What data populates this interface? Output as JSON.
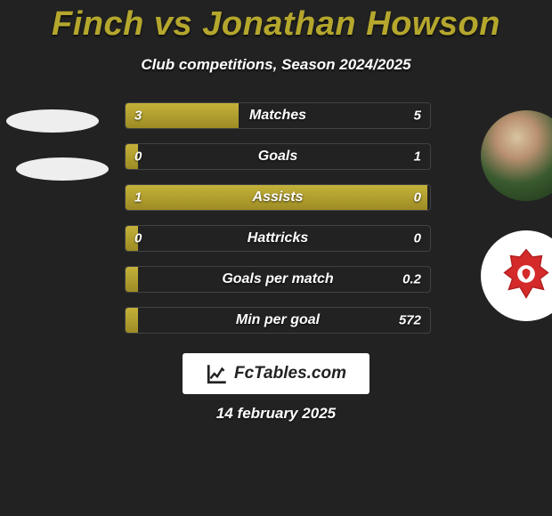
{
  "title": "Finch vs Jonathan Howson",
  "subtitle": "Club competitions, Season 2024/2025",
  "date": "14 february 2025",
  "logo_text": "FcTables.com",
  "accent_color": "#b5a72d",
  "bar_fill_gradient": [
    "#c4b13a",
    "#9d8c24"
  ],
  "background_color": "#222222",
  "bars": [
    {
      "label": "Matches",
      "left": "3",
      "right": "5",
      "fill_pct": 37
    },
    {
      "label": "Goals",
      "left": "0",
      "right": "1",
      "fill_pct": 4
    },
    {
      "label": "Assists",
      "left": "1",
      "right": "0",
      "fill_pct": 99
    },
    {
      "label": "Hattricks",
      "left": "0",
      "right": "0",
      "fill_pct": 4
    },
    {
      "label": "Goals per match",
      "left": "",
      "right": "0.2",
      "fill_pct": 4
    },
    {
      "label": "Min per goal",
      "left": "",
      "right": "572",
      "fill_pct": 4
    }
  ]
}
